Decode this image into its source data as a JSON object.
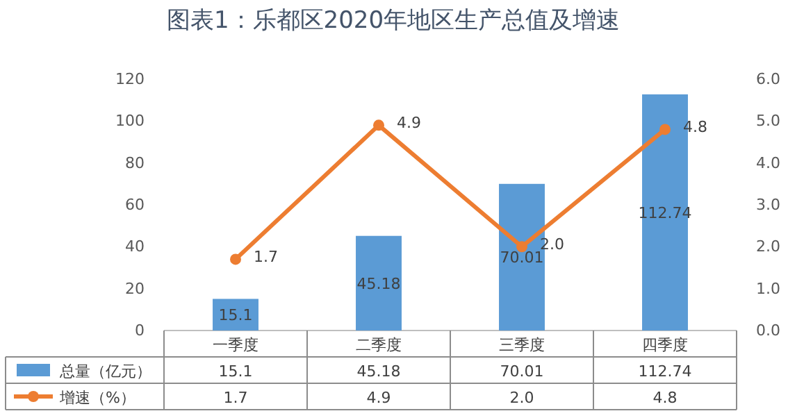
{
  "chart_data": {
    "type": "bar",
    "title": "图表1：乐都区2020年地区生产总值及增速",
    "categories": [
      "一季度",
      "二季度",
      "三季度",
      "四季度"
    ],
    "series": [
      {
        "name": "总量（亿元）",
        "color": "#5b9bd5",
        "values": [
          15.1,
          45.18,
          70.01,
          112.74
        ],
        "value_labels": [
          "15.1",
          "45.18",
          "70.01",
          "112.74"
        ]
      },
      {
        "name": "增速（%）",
        "color": "#ed7d31",
        "type": "line",
        "axis": "y2",
        "marker": "circle",
        "values": [
          1.7,
          4.9,
          2.0,
          4.8
        ],
        "value_labels": [
          "1.7",
          "4.9",
          "2.0",
          "4.8"
        ]
      }
    ],
    "ylim": [
      0,
      120
    ],
    "yticks": [
      0,
      20,
      40,
      60,
      80,
      100,
      120
    ],
    "y2lim": [
      0,
      6
    ],
    "y2ticks": [
      {
        "value": 0,
        "label": "0.0"
      },
      {
        "value": 1,
        "label": "1.0"
      },
      {
        "value": 2,
        "label": "2.0"
      },
      {
        "value": 3,
        "label": "3.0"
      },
      {
        "value": 4,
        "label": "4.0"
      },
      {
        "value": 5,
        "label": "5.0"
      },
      {
        "value": 6,
        "label": "6.0"
      }
    ],
    "data_labels": true,
    "legend": "bottom"
  }
}
